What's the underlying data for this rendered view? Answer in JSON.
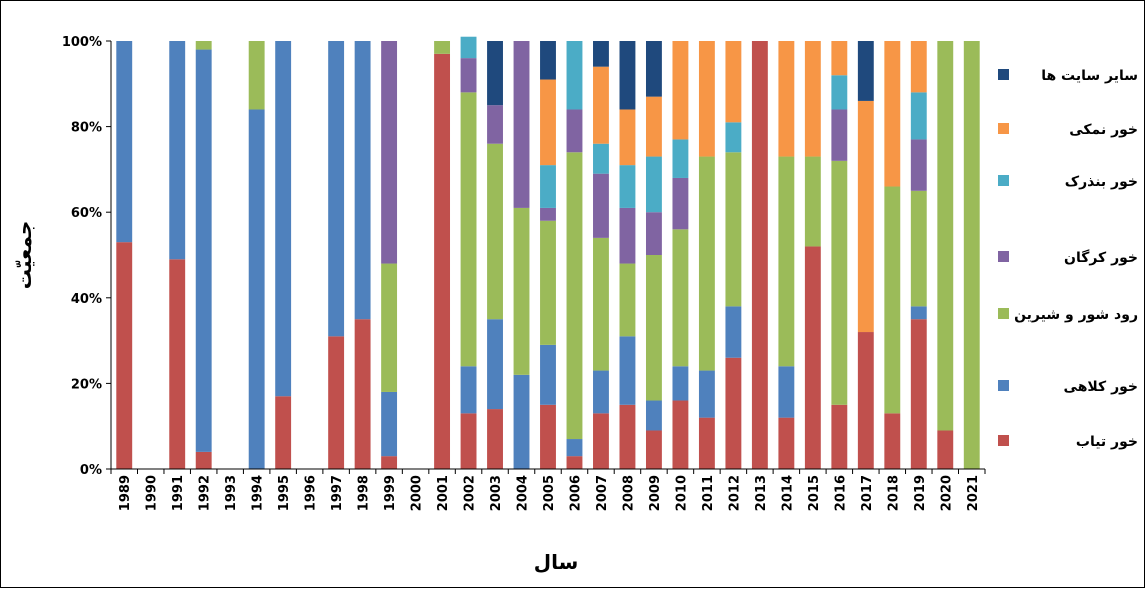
{
  "chart_data": {
    "type": "bar",
    "stacked": true,
    "percent": true,
    "xlabel": "سال",
    "ylabel": "جمعیّت",
    "ylim": [
      0,
      100
    ],
    "yticks": [
      "0%",
      "20%",
      "40%",
      "60%",
      "80%",
      "100%"
    ],
    "grid": false,
    "legend_position": "right",
    "categories": [
      "1989",
      "1990",
      "1991",
      "1992",
      "1993",
      "1994",
      "1995",
      "1996",
      "1997",
      "1998",
      "1999",
      "2000",
      "2001",
      "2002",
      "2003",
      "2004",
      "2005",
      "2006",
      "2007",
      "2008",
      "2009",
      "2010",
      "2011",
      "2012",
      "2013",
      "2014",
      "2015",
      "2016",
      "2017",
      "2018",
      "2019",
      "2020",
      "2021"
    ],
    "series": [
      {
        "name": "خور تیاب",
        "color": "#C0504D",
        "values": [
          53,
          0,
          49,
          4,
          0,
          0,
          17,
          0,
          31,
          35,
          3,
          0,
          97,
          13,
          14,
          0,
          15,
          3,
          13,
          15,
          9,
          16,
          12,
          26,
          100,
          12,
          52,
          15,
          32,
          13,
          35,
          9,
          0
        ]
      },
      {
        "name": "خور کلاهی",
        "color": "#4F81BD",
        "values": [
          47,
          0,
          51,
          94,
          0,
          84,
          83,
          0,
          69,
          65,
          15,
          0,
          0,
          11,
          21,
          22,
          14,
          4,
          10,
          16,
          7,
          8,
          11,
          12,
          0,
          12,
          0,
          0,
          0,
          0,
          3,
          0,
          0
        ]
      },
      {
        "name": "رود شور و شیرین",
        "color": "#9BBB59",
        "values": [
          0,
          0,
          0,
          2,
          0,
          16,
          0,
          0,
          0,
          0,
          30,
          0,
          3,
          64,
          41,
          39,
          29,
          67,
          31,
          17,
          34,
          32,
          50,
          36,
          0,
          49,
          21,
          57,
          0,
          53,
          27,
          91,
          100
        ]
      },
      {
        "name": "خور کرگان",
        "color": "#8064A2",
        "values": [
          0,
          0,
          0,
          0,
          0,
          0,
          0,
          0,
          0,
          0,
          52,
          0,
          0,
          8,
          9,
          39,
          3,
          10,
          15,
          13,
          10,
          12,
          0,
          0,
          0,
          0,
          0,
          12,
          0,
          0,
          12,
          0,
          0
        ]
      },
      {
        "name": "خور بنذرک",
        "color": "#4BACC6",
        "values": [
          0,
          0,
          0,
          0,
          0,
          0,
          0,
          0,
          0,
          0,
          0,
          0,
          0,
          5,
          0,
          0,
          10,
          16,
          7,
          10,
          13,
          9,
          0,
          7,
          0,
          0,
          0,
          8,
          0,
          0,
          11,
          0,
          0
        ]
      },
      {
        "name": "خور نمکی",
        "color": "#F79646",
        "values": [
          0,
          0,
          0,
          0,
          0,
          0,
          0,
          0,
          0,
          0,
          0,
          0,
          0,
          0,
          0,
          0,
          20,
          0,
          18,
          13,
          14,
          23,
          27,
          19,
          0,
          27,
          27,
          8,
          54,
          34,
          12,
          0,
          0
        ]
      },
      {
        "name": "سایر سایت ها",
        "color": "#1F497D",
        "values": [
          0,
          0,
          0,
          0,
          0,
          0,
          0,
          0,
          0,
          0,
          0,
          0,
          0,
          0,
          15,
          0,
          9,
          0,
          6,
          16,
          13,
          0,
          0,
          0,
          0,
          0,
          0,
          0,
          14,
          0,
          0,
          0,
          0
        ]
      }
    ]
  }
}
